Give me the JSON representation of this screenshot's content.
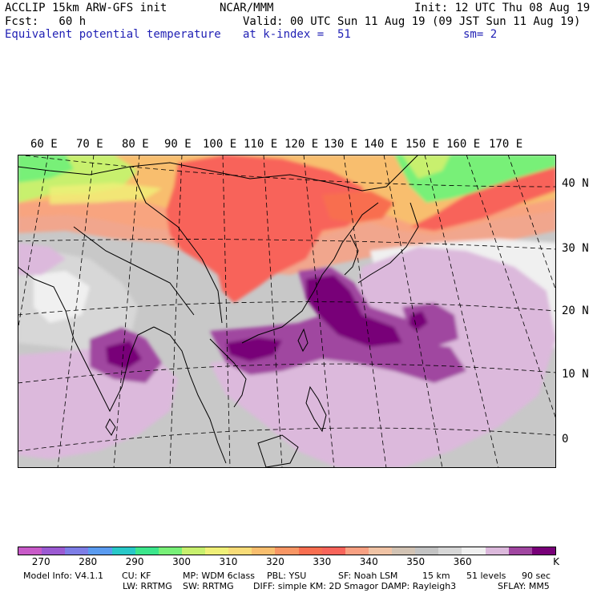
{
  "header": {
    "line1_left": "ACCLIP 15km ARW-GFS init",
    "line1_center": "NCAR/MMM",
    "line1_right": "Init: 12 UTC Thu 08 Aug 19",
    "line2_left": "Fcst:   60 h",
    "line2_right": "Valid: 00 UTC Sun 11 Aug 19 (09 JST Sun 11 Aug 19)",
    "line3_left": "Equivalent potential temperature",
    "line3_center": "at k-index =  51",
    "line3_right": "sm= 2"
  },
  "map": {
    "longitude_labels": [
      "60 E",
      "70 E",
      "80 E",
      "90 E",
      "100 E",
      "110 E",
      "120 E",
      "130 E",
      "140 E",
      "150 E",
      "160 E",
      "170 E"
    ],
    "latitude_labels": [
      "40 N",
      "30 N",
      "20 N",
      "10 N",
      "0"
    ]
  },
  "colorbar": {
    "colors": [
      "#c85ac8",
      "#9b5ad2",
      "#7d7de6",
      "#5a9bf0",
      "#28c8c8",
      "#3ce68c",
      "#78f078",
      "#c8f06e",
      "#f0f078",
      "#f8dc78",
      "#f8be6e",
      "#f89664",
      "#f86e50",
      "#f8645a",
      "#f8a082",
      "#f0c3a5",
      "#d2c3b4",
      "#c3c3c3",
      "#d7d7d7",
      "#f0f0f0",
      "#dcb9dc",
      "#a046a0",
      "#780078"
    ],
    "tick_labels": [
      "270",
      "280",
      "290",
      "300",
      "310",
      "320",
      "330",
      "340",
      "350",
      "360"
    ],
    "unit": "K"
  },
  "info": {
    "line1": [
      {
        "key": "model",
        "text": "Model Info: V4.1.1"
      },
      {
        "key": "cu",
        "text": "CU: KF"
      },
      {
        "key": "mp",
        "text": "MP: WDM 6class"
      },
      {
        "key": "pbl",
        "text": "PBL: YSU"
      },
      {
        "key": "sf",
        "text": "SF: Noah LSM"
      },
      {
        "key": "res",
        "text": "15 km"
      },
      {
        "key": "levels",
        "text": "51 levels"
      },
      {
        "key": "dt",
        "text": "90 sec"
      }
    ],
    "line2": [
      {
        "key": "lw",
        "text": "LW: RRTMG"
      },
      {
        "key": "sw",
        "text": "SW: RRTMG"
      },
      {
        "key": "diff",
        "text": "DIFF: simple KM: 2D Smagor DAMP: Rayleigh3"
      },
      {
        "key": "sflay",
        "text": "SFLAY: MM5"
      }
    ]
  }
}
